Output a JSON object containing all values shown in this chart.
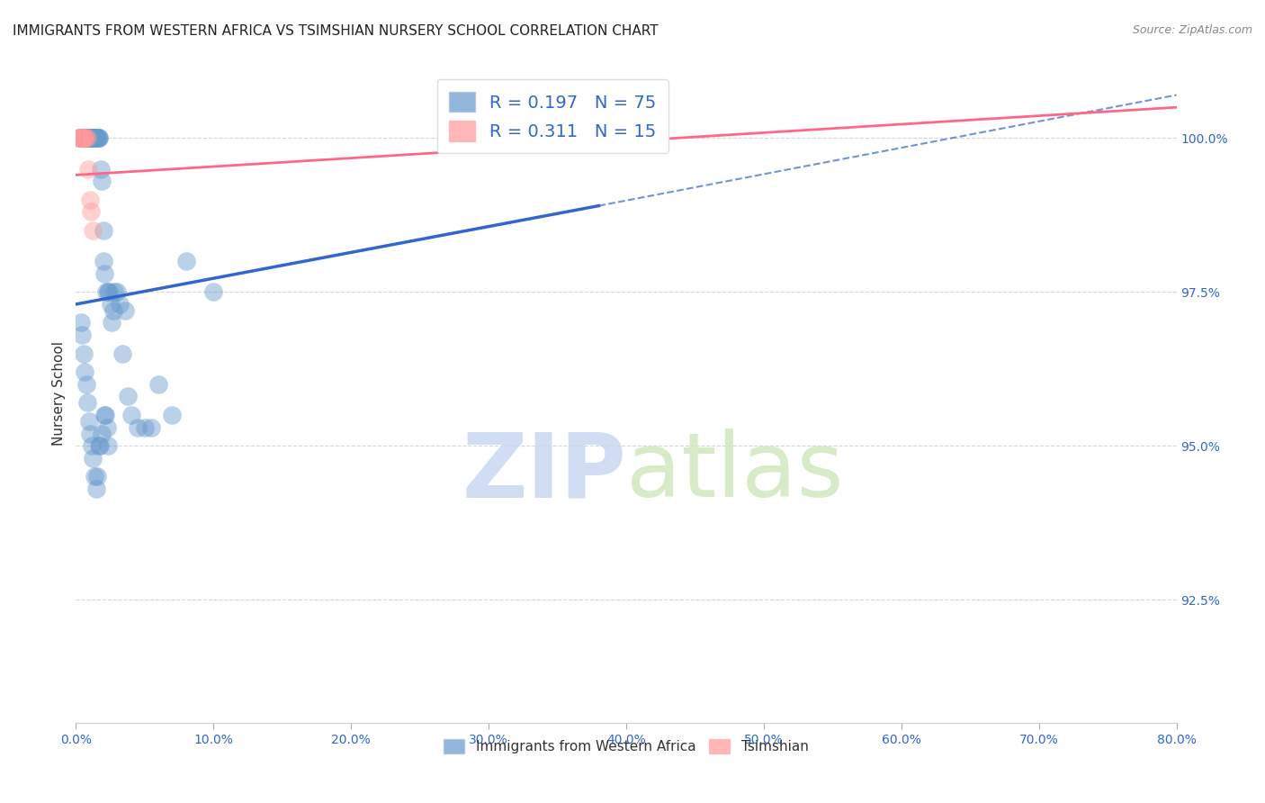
{
  "title": "IMMIGRANTS FROM WESTERN AFRICA VS TSIMSHIAN NURSERY SCHOOL CORRELATION CHART",
  "source": "Source: ZipAtlas.com",
  "xlabel": "",
  "ylabel": "Nursery School",
  "xlim": [
    0.0,
    80.0
  ],
  "ylim": [
    90.5,
    101.2
  ],
  "yticks": [
    92.5,
    95.0,
    97.5,
    100.0
  ],
  "xticks": [
    0.0,
    10.0,
    20.0,
    30.0,
    40.0,
    50.0,
    60.0,
    70.0,
    80.0
  ],
  "blue_R": 0.197,
  "blue_N": 75,
  "pink_R": 0.311,
  "pink_N": 15,
  "blue_color": "#6699CC",
  "pink_color": "#FF9999",
  "blue_line_color": "#3366CC",
  "pink_line_color": "#FF6688",
  "grid_color": "#CCCCCC",
  "background_color": "#FFFFFF",
  "blue_scatter_x": [
    0.3,
    0.4,
    0.4,
    0.5,
    0.5,
    0.6,
    0.6,
    0.7,
    0.7,
    0.8,
    0.8,
    0.9,
    0.9,
    1.0,
    1.0,
    1.0,
    1.1,
    1.1,
    1.2,
    1.2,
    1.3,
    1.3,
    1.4,
    1.4,
    1.5,
    1.5,
    1.6,
    1.6,
    1.7,
    1.7,
    1.8,
    1.9,
    2.0,
    2.0,
    2.1,
    2.2,
    2.3,
    2.4,
    2.5,
    2.6,
    2.7,
    2.8,
    3.0,
    3.2,
    3.4,
    3.6,
    3.8,
    4.0,
    4.5,
    5.0,
    5.5,
    6.0,
    7.0,
    8.0,
    10.0,
    0.35,
    0.45,
    0.55,
    0.65,
    0.75,
    0.85,
    0.95,
    1.05,
    1.15,
    1.25,
    1.35,
    1.45,
    1.55,
    1.65,
    1.75,
    1.85,
    2.05,
    2.15,
    2.25,
    2.35
  ],
  "blue_scatter_y": [
    100.0,
    100.0,
    100.0,
    100.0,
    100.0,
    100.0,
    100.0,
    100.0,
    100.0,
    100.0,
    100.0,
    100.0,
    100.0,
    100.0,
    100.0,
    100.0,
    100.0,
    100.0,
    100.0,
    100.0,
    100.0,
    100.0,
    100.0,
    100.0,
    100.0,
    100.0,
    100.0,
    100.0,
    100.0,
    100.0,
    99.5,
    99.3,
    98.5,
    98.0,
    97.8,
    97.5,
    97.5,
    97.5,
    97.3,
    97.0,
    97.2,
    97.5,
    97.5,
    97.3,
    96.5,
    97.2,
    95.8,
    95.5,
    95.3,
    95.3,
    95.3,
    96.0,
    95.5,
    98.0,
    97.5,
    97.0,
    96.8,
    96.5,
    96.2,
    96.0,
    95.7,
    95.4,
    95.2,
    95.0,
    94.8,
    94.5,
    94.3,
    94.5,
    95.0,
    95.0,
    95.2,
    95.5,
    95.5,
    95.3,
    95.0
  ],
  "pink_scatter_x": [
    0.2,
    0.25,
    0.3,
    0.35,
    0.4,
    0.45,
    0.5,
    0.55,
    0.6,
    0.7,
    0.8,
    0.9,
    1.0,
    1.1,
    1.2
  ],
  "pink_scatter_y": [
    100.0,
    100.0,
    100.0,
    100.0,
    100.0,
    100.0,
    100.0,
    100.0,
    100.0,
    100.0,
    100.0,
    99.5,
    99.0,
    98.8,
    98.5
  ],
  "blue_line_x0": 0.0,
  "blue_line_y0": 97.3,
  "blue_line_x1": 38.0,
  "blue_line_y1": 98.9,
  "blue_dash_x0": 38.0,
  "blue_dash_y0": 98.9,
  "blue_dash_x1": 80.0,
  "blue_dash_y1": 100.7,
  "pink_line_x0": 0.0,
  "pink_line_y0": 99.4,
  "pink_line_x1": 80.0,
  "pink_line_y1": 100.5,
  "watermark_zip": "ZIP",
  "watermark_atlas": "atlas",
  "legend_blue_label": "Immigrants from Western Africa",
  "legend_pink_label": "Tsimshian"
}
